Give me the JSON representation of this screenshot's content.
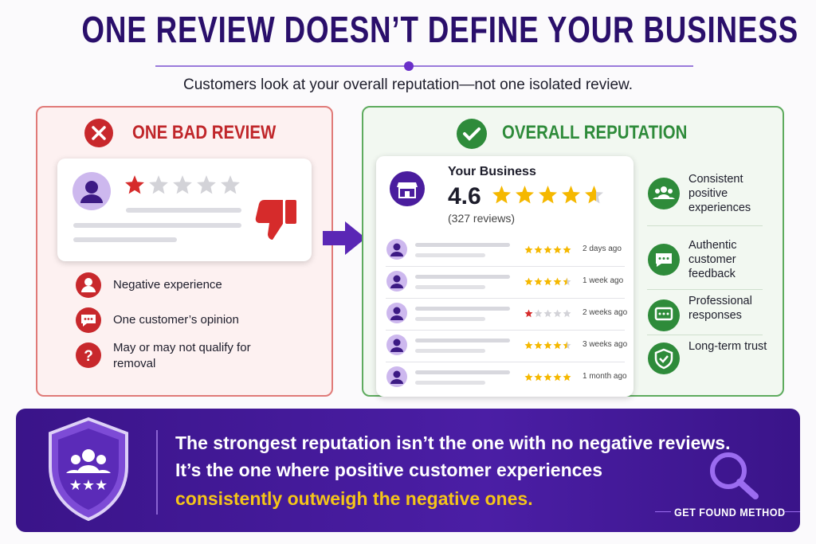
{
  "header": {
    "title": "ONE REVIEW DOESN’T DEFINE YOUR BUSINESS",
    "subtitle": "Customers look at your overall reputation—not one isolated review."
  },
  "bad_review": {
    "heading": "ONE BAD REVIEW",
    "rating": 1,
    "points": [
      "Negative experience",
      "One customer’s opinion",
      "May or may not qualify for removal"
    ]
  },
  "overall": {
    "heading": "OVERALL REPUTATION",
    "business": "Your Business",
    "rating": 4.6,
    "review_count": "(327 reviews)",
    "reviews": [
      {
        "rating": 5,
        "time": "2 days ago"
      },
      {
        "rating": 4.5,
        "time": "1 week ago"
      },
      {
        "rating": 1,
        "time": "2 weeks ago"
      },
      {
        "rating": 4.5,
        "time": "3 weeks ago"
      },
      {
        "rating": 5,
        "time": "1 month ago"
      }
    ],
    "benefits": [
      "Consistent positive experiences",
      "Authentic customer feedback",
      "Professional responses",
      "Long-term trust"
    ]
  },
  "banner": {
    "line1": "The strongest reputation isn’t the one with no negative reviews.",
    "line2": "It’s the one where positive customer experiences",
    "highlight": "consistently outweigh the negative ones.",
    "brand": "GET FOUND METHOD"
  }
}
